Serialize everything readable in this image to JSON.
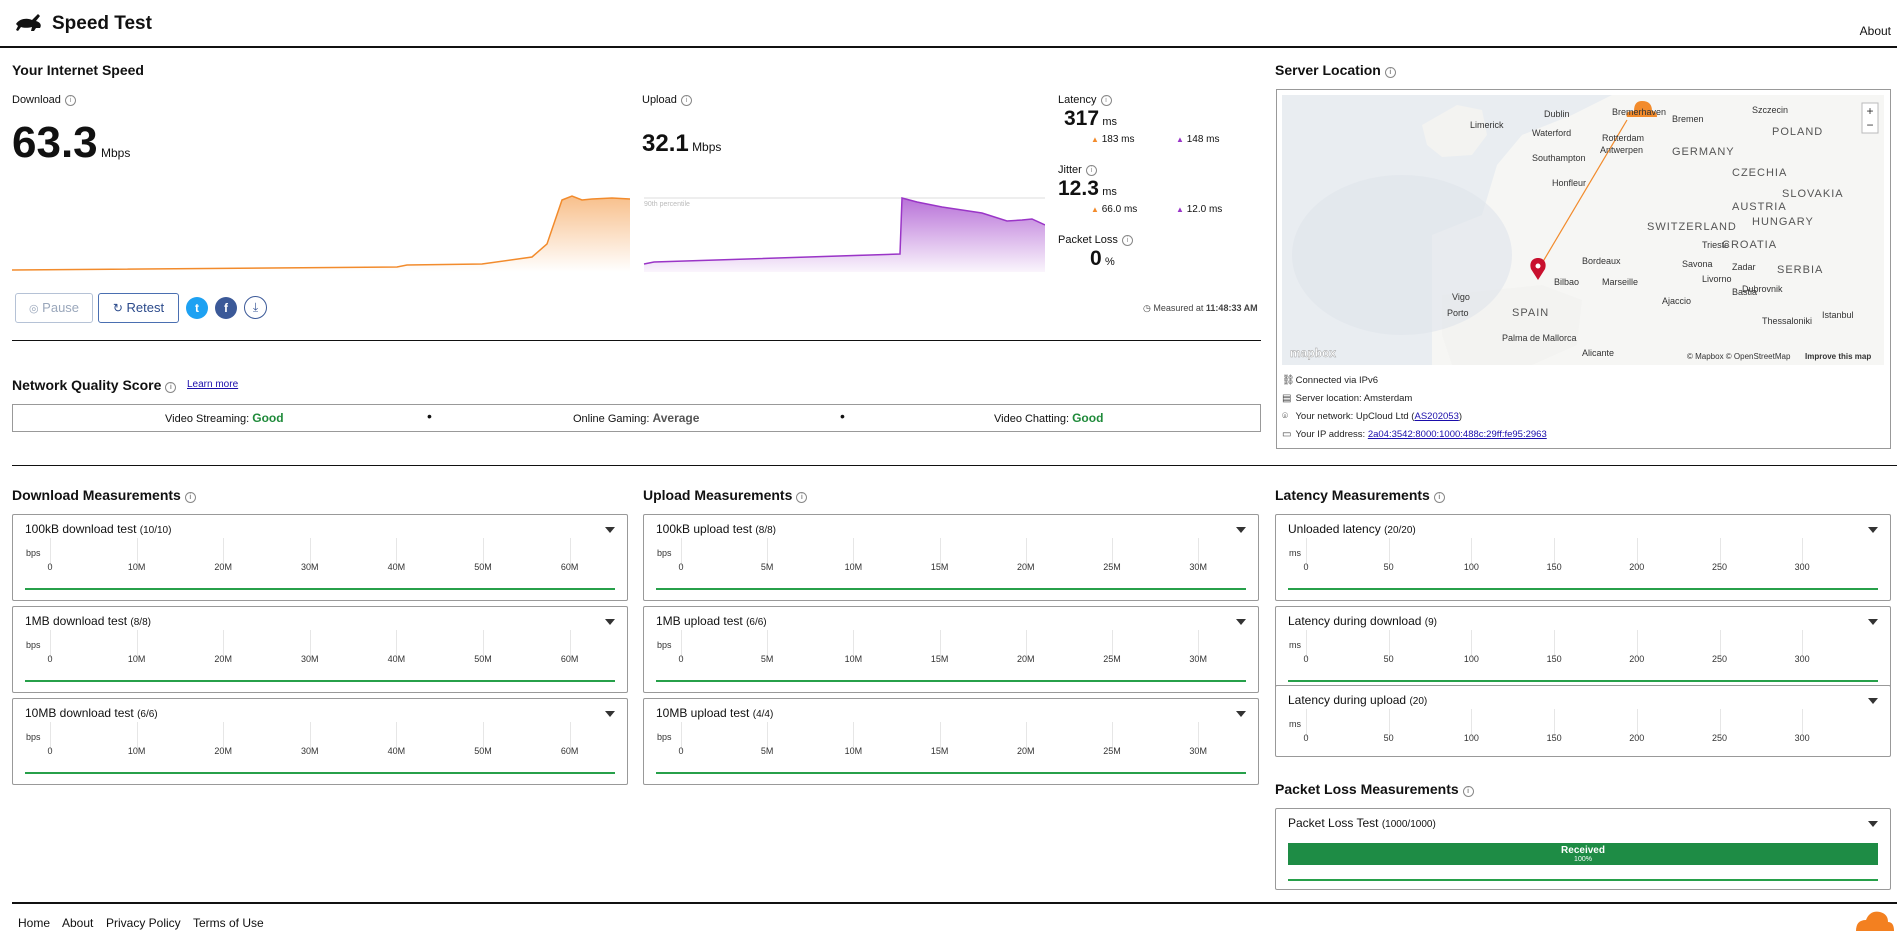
{
  "app": {
    "title": "Speed Test",
    "about": "About"
  },
  "speed": {
    "heading": "Your Internet Speed",
    "download": {
      "label": "Download",
      "value": "63.3",
      "unit": "Mbps"
    },
    "upload": {
      "label": "Upload",
      "value": "32.1",
      "unit": "Mbps",
      "percentile_label": "90th percentile"
    },
    "latency": {
      "label": "Latency",
      "value": "317",
      "unit": "ms",
      "down": "183 ms",
      "up": "148 ms"
    },
    "jitter": {
      "label": "Jitter",
      "value": "12.3",
      "unit": "ms",
      "down": "66.0 ms",
      "up": "12.0 ms"
    },
    "loss": {
      "label": "Packet Loss",
      "value": "0",
      "unit": "%"
    },
    "pause": "Pause",
    "retest": "Retest",
    "measured_label": "Measured at",
    "measured_time": "11:48:33 AM",
    "colors": {
      "download": "#f28b2c",
      "upload": "#9a35c7"
    }
  },
  "quality": {
    "heading": "Network Quality Score",
    "learn_more": "Learn more",
    "items": [
      {
        "label": "Video Streaming:",
        "value": "Good"
      },
      {
        "label": "Online Gaming:",
        "value": "Average"
      },
      {
        "label": "Video Chatting:",
        "value": "Good"
      }
    ]
  },
  "server": {
    "heading": "Server Location",
    "map_labels": [
      "Dublin",
      "Bremerhaven",
      "Bremen",
      "Szczecin",
      "Limerick",
      "Waterford",
      "Rotterdam",
      "Antwerpen",
      "GERMANY",
      "POLAND",
      "Southampton",
      "CZECHIA",
      "Honfleur",
      "SLOVAKIA",
      "AUSTRIA",
      "HUNGARY",
      "SWITZERLAND",
      "Trieste",
      "CROATIA",
      "Bordeaux",
      "Savona",
      "Zadar",
      "SERBIA",
      "Livorno",
      "Dubrovnik",
      "Bastia",
      "Vigo",
      "Bilbao",
      "Marseille",
      "Ajaccio",
      "Porto",
      "SPAIN",
      "Thessaloniki",
      "Istanbul",
      "Palma de Mallorca",
      "Alicante"
    ],
    "map_attribution": "© Mapbox © OpenStreetMap",
    "map_improve": "Improve this map",
    "mapbox": "mapbox",
    "zoom_in": "+",
    "zoom_out": "−",
    "connected": "Connected via IPv6",
    "location_label": "Server location:",
    "location": "Amsterdam",
    "network_label": "Your network:",
    "network": "UpCloud Ltd",
    "asn": "AS202053",
    "ip_label": "Your IP address:",
    "ip": "2a04:3542:8000:1000:488c:29ff:fe95:2963"
  },
  "download_meas": {
    "heading": "Download Measurements",
    "ticks": [
      "0",
      "10M",
      "20M",
      "30M",
      "40M",
      "50M",
      "60M"
    ],
    "unit": "bps",
    "tests": [
      {
        "title": "100kB download test",
        "count": "(10/10)"
      },
      {
        "title": "1MB download test",
        "count": "(8/8)"
      },
      {
        "title": "10MB download test",
        "count": "(6/6)"
      }
    ]
  },
  "upload_meas": {
    "heading": "Upload Measurements",
    "ticks": [
      "0",
      "5M",
      "10M",
      "15M",
      "20M",
      "25M",
      "30M"
    ],
    "unit": "bps",
    "tests": [
      {
        "title": "100kB upload test",
        "count": "(8/8)"
      },
      {
        "title": "1MB upload test",
        "count": "(6/6)"
      },
      {
        "title": "10MB upload test",
        "count": "(4/4)"
      }
    ]
  },
  "latency_meas": {
    "heading": "Latency Measurements",
    "ticks": [
      "0",
      "50",
      "100",
      "150",
      "200",
      "250",
      "300"
    ],
    "unit": "ms",
    "tests": [
      {
        "title": "Unloaded latency",
        "count": "(20/20)"
      },
      {
        "title": "Latency during download",
        "count": "(9)"
      },
      {
        "title": "Latency during upload",
        "count": "(20)"
      }
    ]
  },
  "loss_meas": {
    "heading": "Packet Loss Measurements",
    "title": "Packet Loss Test",
    "count": "(1000/1000)",
    "received": "Received",
    "received_pct": "100%",
    "received_fraction": 1.0
  },
  "footer": {
    "links": [
      "Home",
      "About",
      "Privacy Policy",
      "Terms of Use"
    ]
  }
}
